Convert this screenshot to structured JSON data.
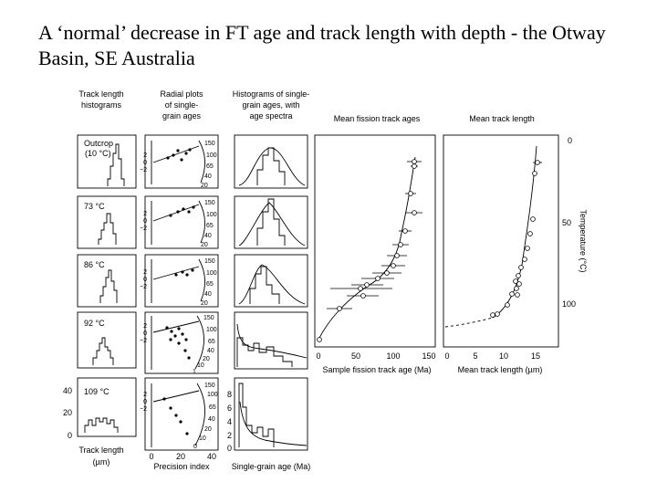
{
  "slide": {
    "title": "A ‘normal’ decrease in FT age and track length with depth - the Otway Basin, SE Australia"
  },
  "figure": {
    "column_headers": {
      "track_length_histograms": [
        "Track length",
        "histograms"
      ],
      "radial_plots": [
        "Radial plots",
        "of single-",
        "grain ages"
      ],
      "age_histograms": [
        "Histograms of single-",
        "grain ages, with",
        "age spectra"
      ],
      "mean_ft_ages": "Mean fission track ages",
      "mean_track_length": "Mean track length"
    },
    "samples": [
      {
        "label": "Outcrop",
        "temp": "(10 °C)"
      },
      {
        "label": "73 °C",
        "temp": ""
      },
      {
        "label": "86 °C",
        "temp": ""
      },
      {
        "label": "92 °C",
        "temp": ""
      },
      {
        "label": "109 °C",
        "temp": ""
      }
    ],
    "radial_scale_labels": [
      "150",
      "100",
      "65",
      "40",
      "20"
    ],
    "radial_scale_labels_row4": [
      "150",
      "100",
      "65",
      "40",
      "20",
      "10",
      "1"
    ],
    "radial_scale_labels_row5": [
      "150",
      "100",
      "65",
      "40",
      "20",
      "10",
      "0"
    ],
    "radial_z_ticks": [
      "2",
      "0",
      "−2"
    ],
    "track_length_yaxis": [
      "40",
      "20",
      "0"
    ],
    "histogram_yaxis": [
      "8",
      "6",
      "4",
      "2",
      "0"
    ],
    "bottom_labels": {
      "track_length": [
        "Track length",
        "(µm)"
      ],
      "precision_index_ticks": [
        "0",
        "20",
        "40"
      ],
      "precision_index": "Precision index",
      "single_grain_age": "Single-grain age (Ma)"
    },
    "ft_age_plot": {
      "x_ticks": [
        "0",
        "50",
        "100",
        "150"
      ],
      "xlabel": "Sample fission track age (Ma)"
    },
    "track_length_plot": {
      "x_ticks": [
        "0",
        "5",
        "10",
        "15"
      ],
      "xlabel": "Mean track length (µm)",
      "y_ticks": [
        "0",
        "50",
        "100"
      ],
      "ylabel": "Temperature (°C)"
    }
  }
}
